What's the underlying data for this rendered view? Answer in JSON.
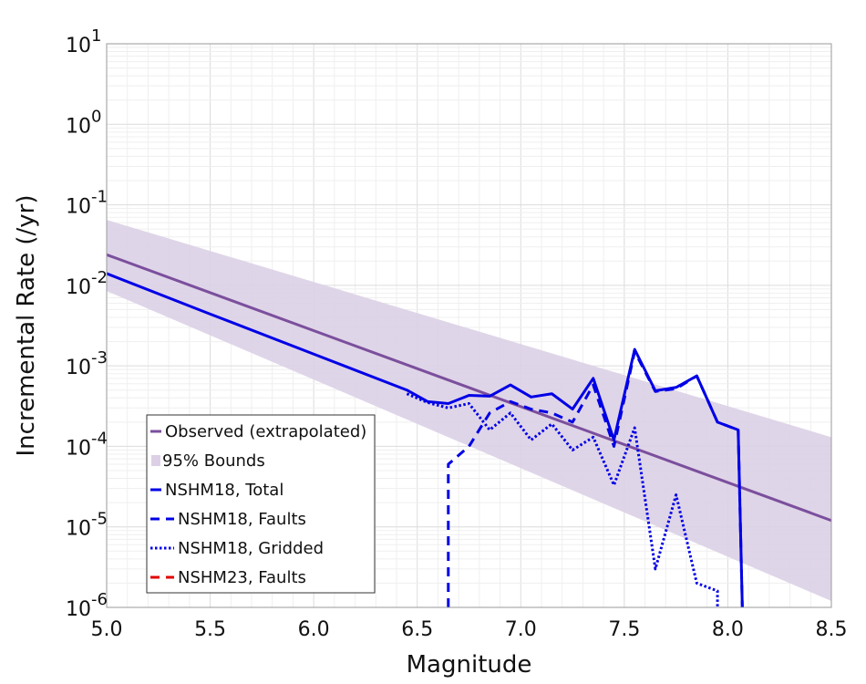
{
  "chart_data": {
    "type": "line",
    "title": "",
    "xlabel": "Magnitude",
    "ylabel": "Incremental Rate (/yr)",
    "x_scale": "linear",
    "y_scale": "log",
    "xlim": [
      5.0,
      8.5
    ],
    "ylim": [
      1e-06,
      10
    ],
    "x_ticks": [
      "5.0",
      "5.5",
      "6.0",
      "6.5",
      "7.0",
      "7.5",
      "8.0",
      "8.5"
    ],
    "y_ticks": [
      {
        "base": "10",
        "exp": "-6"
      },
      {
        "base": "10",
        "exp": "-5"
      },
      {
        "base": "10",
        "exp": "-4"
      },
      {
        "base": "10",
        "exp": "-3"
      },
      {
        "base": "10",
        "exp": "-2"
      },
      {
        "base": "10",
        "exp": "-1"
      },
      {
        "base": "10",
        "exp": "0"
      },
      {
        "base": "10",
        "exp": "1"
      }
    ],
    "grid": true,
    "legend_position": "bottom-left",
    "bounds": {
      "name": "95% Bounds",
      "color": "#dcd0e6",
      "x": [
        5.0,
        8.5
      ],
      "upper": [
        0.065,
        0.00013
      ],
      "lower": [
        0.0085,
        1.2e-06
      ]
    },
    "series": [
      {
        "name": "Observed (extrapolated)",
        "color": "#7b4f9d",
        "style": "solid",
        "x": [
          5.0,
          8.5
        ],
        "y": [
          0.024,
          1.2e-05
        ]
      },
      {
        "name": "NSHM18, Total",
        "color": "#0000e6",
        "style": "solid",
        "x": [
          5.0,
          5.5,
          6.0,
          6.45,
          6.55,
          6.65,
          6.75,
          6.85,
          6.95,
          7.05,
          7.15,
          7.25,
          7.35,
          7.45,
          7.55,
          7.65,
          7.75,
          7.85,
          7.95,
          8.05,
          8.07
        ],
        "y": [
          0.014,
          0.0044,
          0.0014,
          0.0005,
          0.00036,
          0.00034,
          0.00043,
          0.00042,
          0.00058,
          0.00041,
          0.00045,
          0.00029,
          0.0007,
          0.00012,
          0.0016,
          0.00049,
          0.00054,
          0.00075,
          0.0002,
          0.00016,
          1e-06
        ]
      },
      {
        "name": "NSHM18, Faults",
        "color": "#0000e6",
        "style": "dashed",
        "x": [
          6.65,
          6.65,
          6.75,
          6.85,
          6.95,
          7.05,
          7.15,
          7.25,
          7.35,
          7.45,
          7.55,
          7.65,
          7.75,
          7.85,
          7.95,
          8.05,
          8.07
        ],
        "y": [
          1e-06,
          6e-05,
          0.0001,
          0.00026,
          0.00036,
          0.00029,
          0.00026,
          0.0002,
          0.00058,
          0.0001,
          0.0015,
          0.00048,
          0.00052,
          0.00075,
          0.0002,
          0.00016,
          1e-06
        ]
      },
      {
        "name": "NSHM18, Gridded",
        "color": "#0000e6",
        "style": "dotted",
        "x": [
          6.45,
          6.55,
          6.65,
          6.75,
          6.85,
          6.95,
          7.05,
          7.15,
          7.25,
          7.35,
          7.45,
          7.55,
          7.65,
          7.75,
          7.85,
          7.95,
          7.95
        ],
        "y": [
          0.00045,
          0.00035,
          0.0003,
          0.00034,
          0.00016,
          0.00026,
          0.00012,
          0.00019,
          9e-05,
          0.00013,
          3.3e-05,
          0.00017,
          3e-06,
          2.5e-05,
          2e-06,
          1.6e-06,
          1e-06
        ]
      },
      {
        "name": "NSHM23, Faults",
        "color": "#e00000",
        "style": "dashed",
        "x": [],
        "y": []
      }
    ]
  }
}
